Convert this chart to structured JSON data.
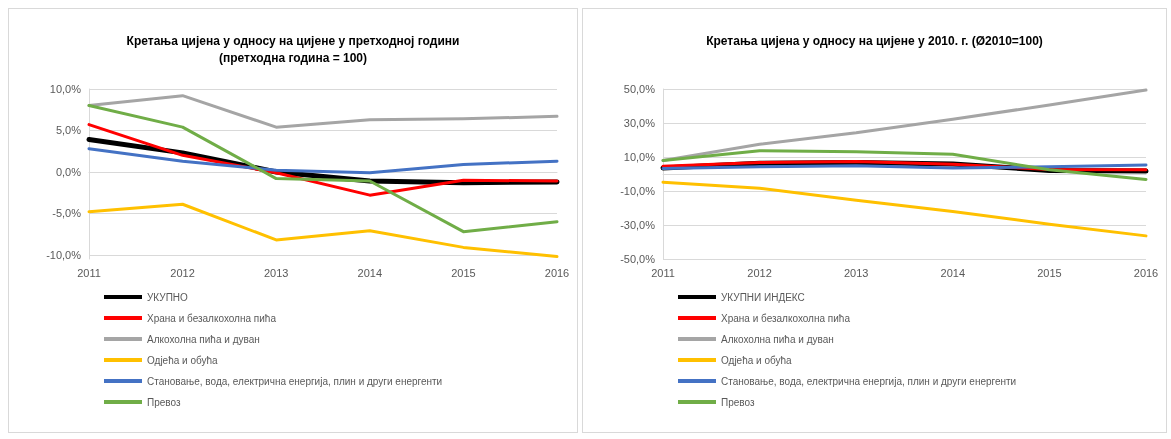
{
  "chart_data": [
    {
      "type": "line",
      "title": "Кретања цијена у односу на цијене у претходној години\n(претходна година = 100)",
      "categories": [
        "2011",
        "2012",
        "2013",
        "2014",
        "2015",
        "2016"
      ],
      "ylim": [
        -10.5,
        10
      ],
      "yticks": [
        {
          "value": -10,
          "label": "-10,0%"
        },
        {
          "value": -5,
          "label": "-5,0%"
        },
        {
          "value": 0,
          "label": "0,0%"
        },
        {
          "value": 5,
          "label": "5,0%"
        },
        {
          "value": 10,
          "label": "10,0%"
        }
      ],
      "grid": "y",
      "legend": "bottom",
      "marker": "none",
      "line_style": "solid",
      "series": [
        {
          "name": "УКУПНО",
          "color": "#000000",
          "values": [
            3.9,
            2.3,
            0,
            -1.1,
            -1.3,
            -1.2
          ]
        },
        {
          "name": "Храна и безалкохолна пића",
          "color": "#ff0000",
          "values": [
            5.7,
            2.0,
            -0.1,
            -2.8,
            -1.0,
            -1.1
          ]
        },
        {
          "name": "Алкохолна пића и дуван",
          "color": "#a5a5a5",
          "values": [
            8.0,
            9.2,
            5.4,
            6.3,
            6.4,
            6.7
          ]
        },
        {
          "name": "Одјећа и обућа",
          "color": "#ffc000",
          "values": [
            -4.8,
            -3.9,
            -8.2,
            -7.1,
            -9.1,
            -10.2
          ]
        },
        {
          "name": "Становање, вода, електрична енергија, плин и други енергенти",
          "color": "#4472c4",
          "values": [
            2.8,
            1.3,
            0.2,
            -0.1,
            0.9,
            1.3
          ]
        },
        {
          "name": "Превоз",
          "color": "#70ad47",
          "values": [
            8.0,
            5.4,
            -0.8,
            -1.1,
            -7.2,
            -6.0
          ]
        }
      ]
    },
    {
      "type": "line",
      "title": "Кретања цијена у односу на цијене у 2010. г. (Ø2010=100)",
      "categories": [
        "2011",
        "2012",
        "2013",
        "2014",
        "2015",
        "2016"
      ],
      "ylim": [
        -50,
        50
      ],
      "yticks": [
        {
          "value": -50,
          "label": "-50,0%"
        },
        {
          "value": -30,
          "label": "-30,0%"
        },
        {
          "value": -10,
          "label": "-10,0%"
        },
        {
          "value": 10,
          "label": "10,0%"
        },
        {
          "value": 30,
          "label": "30,0%"
        },
        {
          "value": 50,
          "label": "50,0%"
        }
      ],
      "grid": "y",
      "legend": "bottom",
      "marker": "none",
      "line_style": "solid",
      "series": [
        {
          "name": "УКУПНИ ИНДЕКС",
          "color": "#000000",
          "values": [
            3.6,
            6.3,
            6.7,
            5.9,
            2.1,
            1.7
          ]
        },
        {
          "name": "Храна и безалкохолна пића",
          "color": "#ff0000",
          "values": [
            4.6,
            6.7,
            7.4,
            5.7,
            2.7,
            2.5
          ]
        },
        {
          "name": "Алкохолна пића и дуван",
          "color": "#a5a5a5",
          "values": [
            8.0,
            17.5,
            24.2,
            32.2,
            40.6,
            49.4
          ]
        },
        {
          "name": "Одјећа и обућа",
          "color": "#ffc000",
          "values": [
            -4.8,
            -8.4,
            -15.4,
            -22.1,
            -29.5,
            -36.4
          ]
        },
        {
          "name": "Становање, вода, електрична енергија, плин и други енергенти",
          "color": "#4472c4",
          "values": [
            3.2,
            4.2,
            4.8,
            3.6,
            4.2,
            5.3
          ]
        },
        {
          "name": "Превоз",
          "color": "#70ad47",
          "values": [
            8.0,
            13.7,
            13.1,
            11.6,
            2.5,
            -3.2
          ]
        }
      ]
    }
  ]
}
